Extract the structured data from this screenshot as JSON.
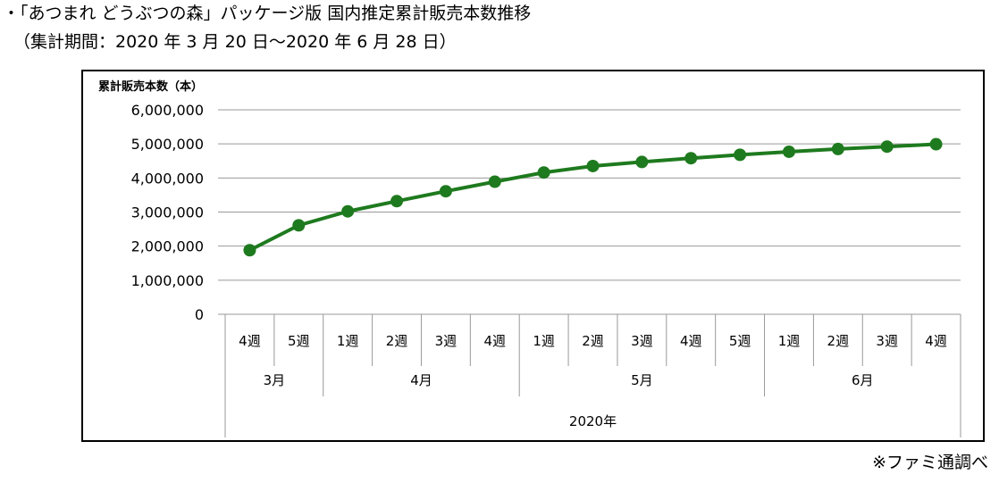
{
  "heading": {
    "title": "・「あつまれ どうぶつの森」パッケージ版 国内推定累計販売本数推移",
    "period": "（集計期間：2020 年 3 月 20 日～2020 年 6 月 28 日）"
  },
  "source_note": "※ファミ通調べ",
  "colors": {
    "series": "#1e7a1e",
    "grid": "#999999",
    "frame": "#000000"
  },
  "chart_data": {
    "type": "line",
    "ylabel": "累計販売本数（本）",
    "ylim": [
      0,
      6000000
    ],
    "yticks": [
      0,
      1000000,
      2000000,
      3000000,
      4000000,
      5000000,
      6000000
    ],
    "ytick_labels": [
      "0",
      "1,000,000",
      "2,000,000",
      "3,000,000",
      "4,000,000",
      "5,000,000",
      "6,000,000"
    ],
    "grid": true,
    "categories": [
      "4週",
      "5週",
      "1週",
      "2週",
      "3週",
      "4週",
      "1週",
      "2週",
      "3週",
      "4週",
      "5週",
      "1週",
      "2週",
      "3週",
      "4週"
    ],
    "month_groups": [
      {
        "label": "3月",
        "count": 2
      },
      {
        "label": "4月",
        "count": 4
      },
      {
        "label": "5月",
        "count": 5
      },
      {
        "label": "6月",
        "count": 4
      }
    ],
    "year_label": "2020年",
    "series": [
      {
        "values": [
          1880000,
          2610000,
          3020000,
          3320000,
          3610000,
          3890000,
          4160000,
          4350000,
          4470000,
          4580000,
          4680000,
          4770000,
          4850000,
          4920000,
          4990000
        ]
      }
    ]
  }
}
